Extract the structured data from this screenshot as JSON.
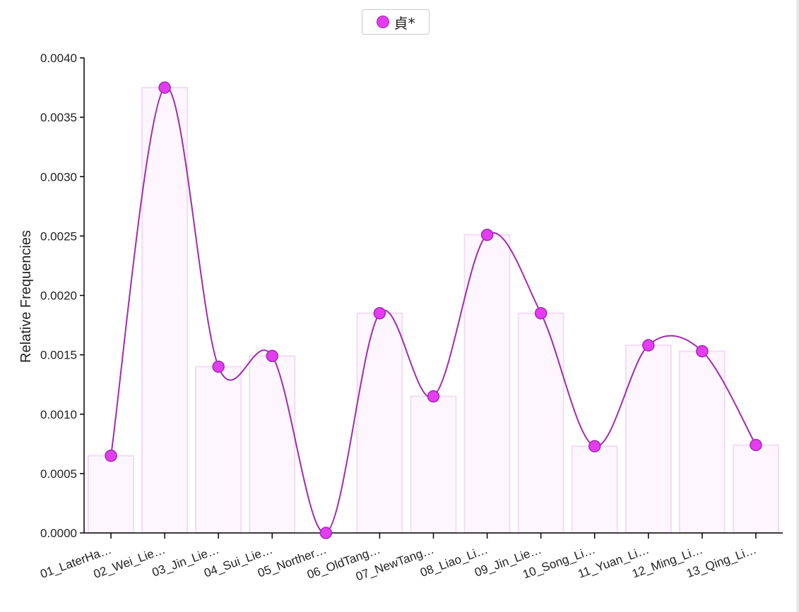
{
  "chart_data": {
    "type": "bar",
    "categories": [
      "01_LaterHa…",
      "02_Wei_Lie…",
      "03_Jin_Lie…",
      "04_Sui_Lie…",
      "05_Norther…",
      "06_OldTang…",
      "07_NewTang…",
      "08_Liao_Li…",
      "09_Jin_Lie…",
      "10_Song_Li…",
      "11_Yuan_Li…",
      "12_Ming_Li…",
      "13_Qing_Li…"
    ],
    "series": [
      {
        "name": "貞*",
        "values": [
          0.00065,
          0.00375,
          0.0014,
          0.00149,
          0.0,
          0.00185,
          0.00115,
          0.00251,
          0.00185,
          0.00073,
          0.00158,
          0.00153,
          0.00074
        ]
      }
    ],
    "overlay": "smooth-line-with-points",
    "xlabel": "",
    "ylabel": "Relative Frequencies",
    "ylim": [
      0,
      0.004
    ],
    "yticks": [
      "0.0000",
      "0.0005",
      "0.0010",
      "0.0015",
      "0.0020",
      "0.0025",
      "0.0030",
      "0.0035",
      "0.0040"
    ],
    "grid": false,
    "legend_position": "top-center",
    "colors": {
      "series": "#e43cf0",
      "line": "#a32ab0",
      "bar_fill": "#fdf6fe",
      "bar_stroke": "#f2dcf5",
      "axis": "#000000"
    }
  }
}
